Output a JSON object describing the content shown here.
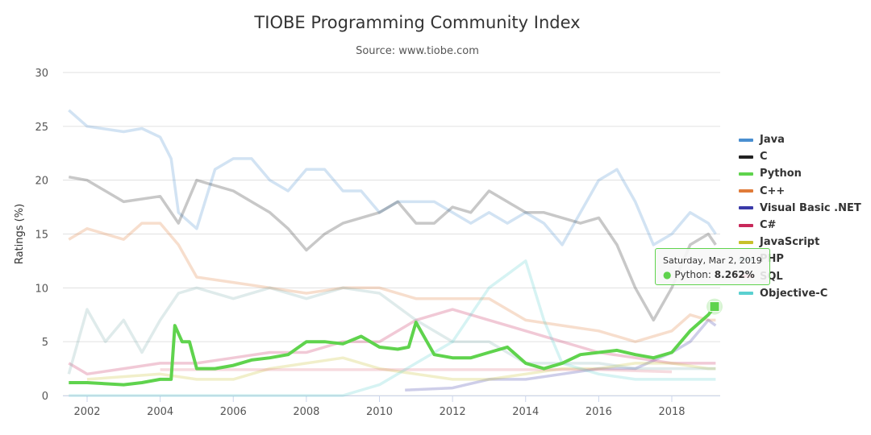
{
  "chart_data": {
    "type": "line",
    "title": "TIOBE Programming Community Index",
    "subtitle": "Source: www.tiobe.com",
    "ylabel": "Ratings (%)",
    "xlabel": "",
    "ylim": [
      0,
      30
    ],
    "xlim": [
      2001.5,
      2019.2
    ],
    "yticks": [
      "0",
      "5",
      "10",
      "15",
      "20",
      "25",
      "30"
    ],
    "xticks": [
      "2002",
      "2004",
      "2006",
      "2008",
      "2010",
      "2012",
      "2014",
      "2016",
      "2018"
    ],
    "grid": true,
    "legend_position": "right",
    "highlighted_series": "Python",
    "series": [
      {
        "name": "Java",
        "color": "#4a8fd0",
        "x": [
          2001.5,
          2002,
          2003,
          2003.5,
          2004,
          2004.3,
          2004.5,
          2005,
          2005.5,
          2006,
          2006.5,
          2007,
          2007.5,
          2008,
          2008.5,
          2009,
          2009.5,
          2010,
          2010.5,
          2011,
          2011.5,
          2012,
          2012.5,
          2013,
          2013.5,
          2014,
          2014.5,
          2015,
          2015.5,
          2016,
          2016.5,
          2017,
          2017.5,
          2018,
          2018.5,
          2019,
          2019.2
        ],
        "y": [
          26.5,
          25,
          24.5,
          24.8,
          24,
          22,
          17,
          15.5,
          21,
          22,
          22,
          20,
          19,
          21,
          21,
          19,
          19,
          17,
          18,
          18,
          18,
          17,
          16,
          17,
          16,
          17,
          16,
          14,
          17,
          20,
          21,
          18,
          14,
          15,
          17,
          16,
          15
        ]
      },
      {
        "name": "C",
        "color": "#222222",
        "x": [
          2001.5,
          2002,
          2003,
          2004,
          2004.5,
          2005,
          2006,
          2007,
          2007.5,
          2008,
          2008.5,
          2009,
          2010,
          2010.5,
          2011,
          2011.5,
          2012,
          2012.5,
          2013,
          2013.5,
          2014,
          2014.5,
          2015,
          2015.5,
          2016,
          2016.5,
          2017,
          2017.5,
          2018,
          2018.5,
          2019,
          2019.2
        ],
        "y": [
          20.3,
          20,
          18,
          18.5,
          16,
          20,
          19,
          17,
          15.5,
          13.5,
          15,
          16,
          17,
          18,
          16,
          16,
          17.5,
          17,
          19,
          18,
          17,
          17,
          16.5,
          16,
          16.5,
          14,
          10,
          7,
          10,
          14,
          15,
          14
        ]
      },
      {
        "name": "Python",
        "color": "#5fd34d",
        "x": [
          2001.5,
          2002,
          2003,
          2003.5,
          2004,
          2004.3,
          2004.4,
          2004.6,
          2004.8,
          2005,
          2005.5,
          2006,
          2006.5,
          2007,
          2007.5,
          2008,
          2008.5,
          2009,
          2009.5,
          2010,
          2010.5,
          2010.8,
          2011,
          2011.3,
          2011.5,
          2012,
          2012.5,
          2013,
          2013.5,
          2014,
          2014.5,
          2015,
          2015.5,
          2016,
          2016.5,
          2017,
          2017.5,
          2018,
          2018.5,
          2019,
          2019.17
        ],
        "y": [
          1.2,
          1.2,
          1.0,
          1.2,
          1.5,
          1.5,
          6.5,
          5,
          5,
          2.5,
          2.5,
          2.8,
          3.3,
          3.5,
          3.8,
          5,
          5,
          4.8,
          5.5,
          4.5,
          4.3,
          4.5,
          6.8,
          5,
          3.8,
          3.5,
          3.5,
          4,
          4.5,
          3,
          2.5,
          3,
          3.8,
          4,
          4.2,
          3.8,
          3.5,
          4,
          6,
          7.5,
          8.262
        ]
      },
      {
        "name": "C++",
        "color": "#e07b39",
        "x": [
          2001.5,
          2002,
          2003,
          2003.5,
          2004,
          2004.5,
          2005,
          2006,
          2007,
          2008,
          2009,
          2010,
          2011,
          2012,
          2013,
          2014,
          2015,
          2016,
          2017,
          2018,
          2018.5,
          2019,
          2019.2
        ],
        "y": [
          14.5,
          15.5,
          14.5,
          16,
          16,
          14,
          11,
          10.5,
          10,
          9.5,
          10,
          10,
          9,
          9,
          9,
          7,
          6.5,
          6,
          5,
          6,
          7.5,
          7,
          7
        ]
      },
      {
        "name": "Visual Basic .NET",
        "color": "#3a3aa8",
        "x": [
          2010.7,
          2012,
          2013,
          2014,
          2015,
          2016,
          2017,
          2018,
          2018.5,
          2019,
          2019.2
        ],
        "y": [
          0.5,
          0.7,
          1.5,
          1.5,
          2,
          2.5,
          2.5,
          4,
          5,
          7,
          6.5
        ]
      },
      {
        "name": "C#",
        "color": "#c8285a",
        "x": [
          2001.5,
          2002,
          2003,
          2004,
          2005,
          2006,
          2007,
          2008,
          2009,
          2010,
          2011,
          2012,
          2013,
          2014,
          2015,
          2016,
          2017,
          2018,
          2019,
          2019.2
        ],
        "y": [
          3,
          2,
          2.5,
          3,
          3,
          3.5,
          4,
          4,
          5,
          5,
          7,
          8,
          7,
          6,
          5,
          4,
          3.5,
          3,
          3,
          3
        ]
      },
      {
        "name": "JavaScript",
        "color": "#c8c02a",
        "x": [
          2002,
          2004,
          2005,
          2006,
          2007,
          2008,
          2009,
          2010,
          2011,
          2012,
          2013,
          2014,
          2015,
          2016,
          2017,
          2018,
          2019,
          2019.2
        ],
        "y": [
          1.5,
          2,
          1.5,
          1.5,
          2.5,
          3,
          3.5,
          2.5,
          2,
          1.5,
          1.5,
          2,
          2.5,
          2.5,
          3,
          3,
          2.5,
          2.5
        ]
      },
      {
        "name": "PHP",
        "color": "#7fb0b0",
        "x": [
          2001.5,
          2002,
          2002.5,
          2003,
          2003.5,
          2004,
          2004.5,
          2005,
          2006,
          2007,
          2008,
          2009,
          2010,
          2011,
          2012,
          2013,
          2014,
          2015,
          2016,
          2017,
          2018,
          2019,
          2019.2
        ],
        "y": [
          2,
          8,
          5,
          7,
          4,
          7,
          9.5,
          10,
          9,
          10,
          9,
          10,
          9.5,
          7,
          5,
          5,
          3,
          3,
          3,
          2.5,
          2.5,
          2.5,
          2.5
        ]
      },
      {
        "name": "SQL",
        "color": "#e07080",
        "x": [
          2004,
          2016,
          2017,
          2018
        ],
        "y": [
          2.4,
          2.4,
          2.3,
          2.2
        ]
      },
      {
        "name": "Objective-C",
        "color": "#5ad0d0",
        "x": [
          2001.5,
          2009,
          2010,
          2011,
          2012,
          2013,
          2014,
          2014.5,
          2015,
          2016,
          2017,
          2018,
          2019,
          2019.2
        ],
        "y": [
          0,
          0,
          1,
          3,
          5,
          10,
          12.5,
          7,
          3,
          2,
          1.5,
          1.5,
          1.5,
          1.5
        ]
      }
    ],
    "tooltip": {
      "date": "Saturday, Mar 2, 2019",
      "series": "Python",
      "value": "8.262%"
    }
  }
}
